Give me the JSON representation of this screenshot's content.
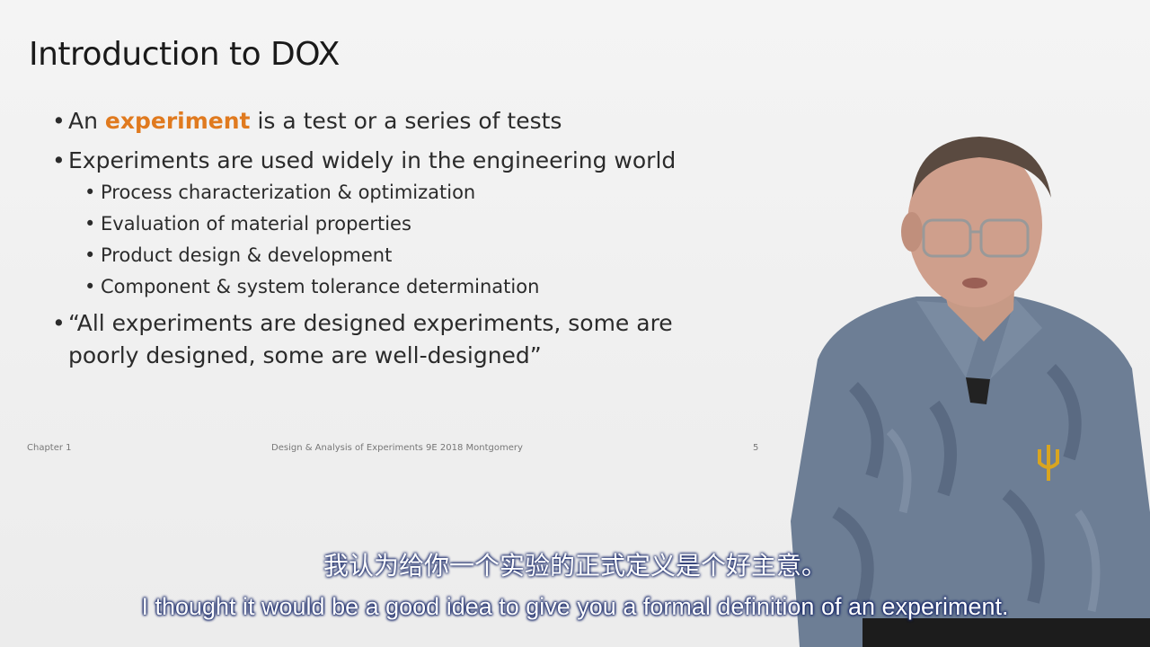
{
  "slide": {
    "title": "Introduction to DOX",
    "bullet1": {
      "prefix": "An ",
      "highlight": "experiment",
      "suffix": " is a test or a series of tests"
    },
    "bullet2": "Experiments are used widely in the engineering world",
    "subbullets": [
      "Process characterization & optimization",
      "Evaluation of material properties",
      "Product design & development",
      "Component & system tolerance determination"
    ],
    "bullet3_line1": "“All experiments are designed experiments, some are",
    "bullet3_line2": "poorly designed, some are well-designed”",
    "footer_left": "Chapter 1",
    "footer_center": "Design & Analysis of Experiments 9E 2018 Montgomery",
    "footer_right": "5",
    "accent_color": "#e07a1f"
  },
  "subtitles": {
    "chinese": "我认为给你一个实验的正式定义是个好主意。",
    "english": "I thought it would be a good idea to give you a formal definition of an experiment."
  },
  "video": {
    "presenter": "presenter-figure"
  }
}
